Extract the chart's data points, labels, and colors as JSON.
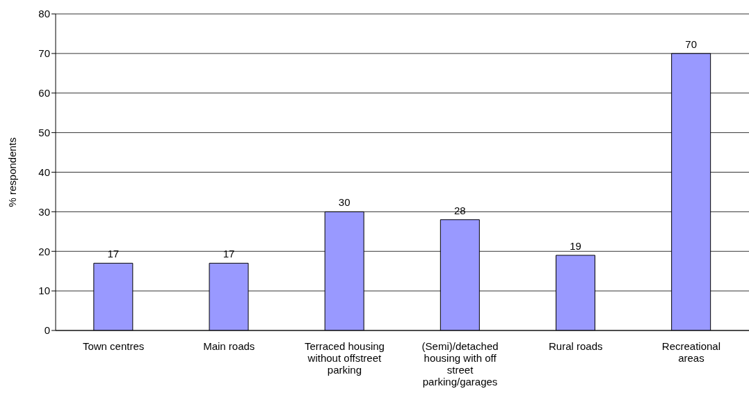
{
  "chart_data": {
    "type": "bar",
    "ylabel": "% respondents",
    "categories": [
      "Town centres",
      "Main roads",
      "Terraced housing without offstreet parking",
      "(Semi)/detached housing with off street parking/garages",
      "Rural roads",
      "Recreational areas"
    ],
    "values": [
      17,
      17,
      30,
      28,
      19,
      70
    ],
    "color": "#9999ff",
    "ylim": [
      0,
      80
    ],
    "yticks": [
      0,
      10,
      20,
      30,
      40,
      50,
      60,
      70,
      80
    ],
    "grid": "y",
    "data_labels": true
  }
}
